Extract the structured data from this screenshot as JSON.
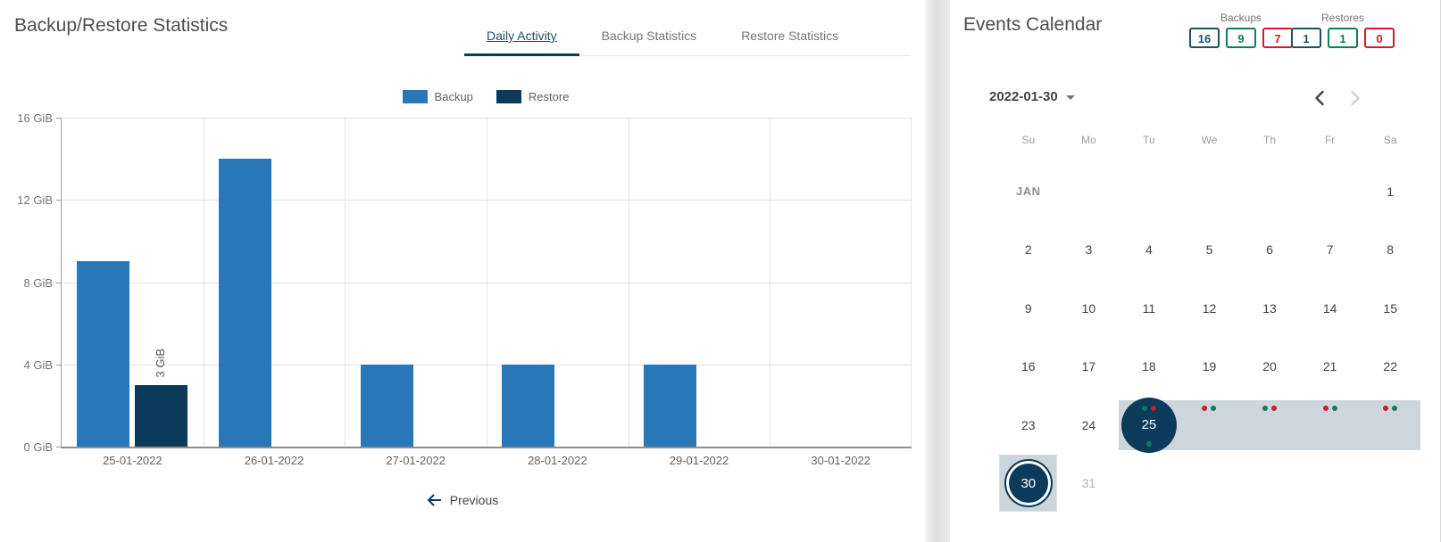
{
  "colors": {
    "navy": "#0c3a5a",
    "badge_navy": "#1d4e6b",
    "green": "#0e7d5a",
    "red": "#cf1c2a",
    "backup_blue": "#2878b9",
    "range_band": "#cdd6dc"
  },
  "left_panel": {
    "title": "Backup/Restore Statistics",
    "tabs": [
      {
        "label": "Daily Activity",
        "active": true
      },
      {
        "label": "Backup Statistics",
        "active": false
      },
      {
        "label": "Restore Statistics",
        "active": false
      }
    ],
    "previous_label": "Previous"
  },
  "chart_data": {
    "type": "bar",
    "title": "Daily Activity",
    "categories": [
      "25-01-2022",
      "26-01-2022",
      "27-01-2022",
      "28-01-2022",
      "29-01-2022",
      "30-01-2022"
    ],
    "series": [
      {
        "name": "Backup",
        "color": "#2878b9",
        "values": [
          9,
          14,
          4,
          4,
          4,
          0
        ]
      },
      {
        "name": "Restore",
        "color": "#0c3a5a",
        "values": [
          3,
          0,
          0,
          0,
          0,
          0
        ]
      }
    ],
    "yticks": [
      0,
      4,
      8,
      12,
      16
    ],
    "ytick_labels": [
      "0 GiB",
      "4 GiB",
      "8 GiB",
      "12 GiB",
      "16 GiB"
    ],
    "ylim": [
      0,
      16
    ],
    "unit": "GiB",
    "grid": true,
    "legend_position": "top",
    "bar_annotations": [
      {
        "series": "Restore",
        "category_index": 0,
        "text": "3 GiB"
      }
    ]
  },
  "right_panel": {
    "title": "Events Calendar",
    "counters": [
      {
        "label": "Backups",
        "badges": [
          {
            "value": "16",
            "color": "navy"
          },
          {
            "value": "9",
            "color": "green"
          },
          {
            "value": "7",
            "color": "red"
          }
        ]
      },
      {
        "label": "Restores",
        "badges": [
          {
            "value": "1",
            "color": "navy"
          },
          {
            "value": "1",
            "color": "green"
          },
          {
            "value": "0",
            "color": "red"
          }
        ]
      }
    ],
    "date_selector": "2022-01-30",
    "calendar": {
      "weekdays": [
        "Su",
        "Mo",
        "Tu",
        "We",
        "Th",
        "Fr",
        "Sa"
      ],
      "weeks": [
        [
          {
            "month_label": "JAN"
          },
          {},
          {},
          {},
          {},
          {},
          {
            "day": "1"
          }
        ],
        [
          {
            "day": "2"
          },
          {
            "day": "3"
          },
          {
            "day": "4"
          },
          {
            "day": "5"
          },
          {
            "day": "6"
          },
          {
            "day": "7"
          },
          {
            "day": "8"
          }
        ],
        [
          {
            "day": "9"
          },
          {
            "day": "10"
          },
          {
            "day": "11"
          },
          {
            "day": "12"
          },
          {
            "day": "13"
          },
          {
            "day": "14"
          },
          {
            "day": "15"
          }
        ],
        [
          {
            "day": "16"
          },
          {
            "day": "17"
          },
          {
            "day": "18"
          },
          {
            "day": "19"
          },
          {
            "day": "20"
          },
          {
            "day": "21"
          },
          {
            "day": "22"
          }
        ],
        [
          {
            "day": "23"
          },
          {
            "day": "24"
          },
          {
            "day": "25",
            "selected": true,
            "in_range": true,
            "dots_top": [
              "green",
              "red"
            ],
            "dots_bottom": [
              "green"
            ]
          },
          {
            "day": "26",
            "in_range": true,
            "dots_top": [
              "red",
              "green"
            ]
          },
          {
            "day": "27",
            "in_range": true,
            "dots_top": [
              "green",
              "red"
            ]
          },
          {
            "day": "28",
            "in_range": true,
            "dots_top": [
              "red",
              "green"
            ]
          },
          {
            "day": "29",
            "in_range": true,
            "dots_top": [
              "red",
              "green"
            ]
          }
        ],
        [
          {
            "day": "30",
            "ringed": true,
            "boxed": true
          },
          {
            "day": "31",
            "muted": true
          },
          {},
          {},
          {},
          {},
          {}
        ]
      ]
    }
  }
}
